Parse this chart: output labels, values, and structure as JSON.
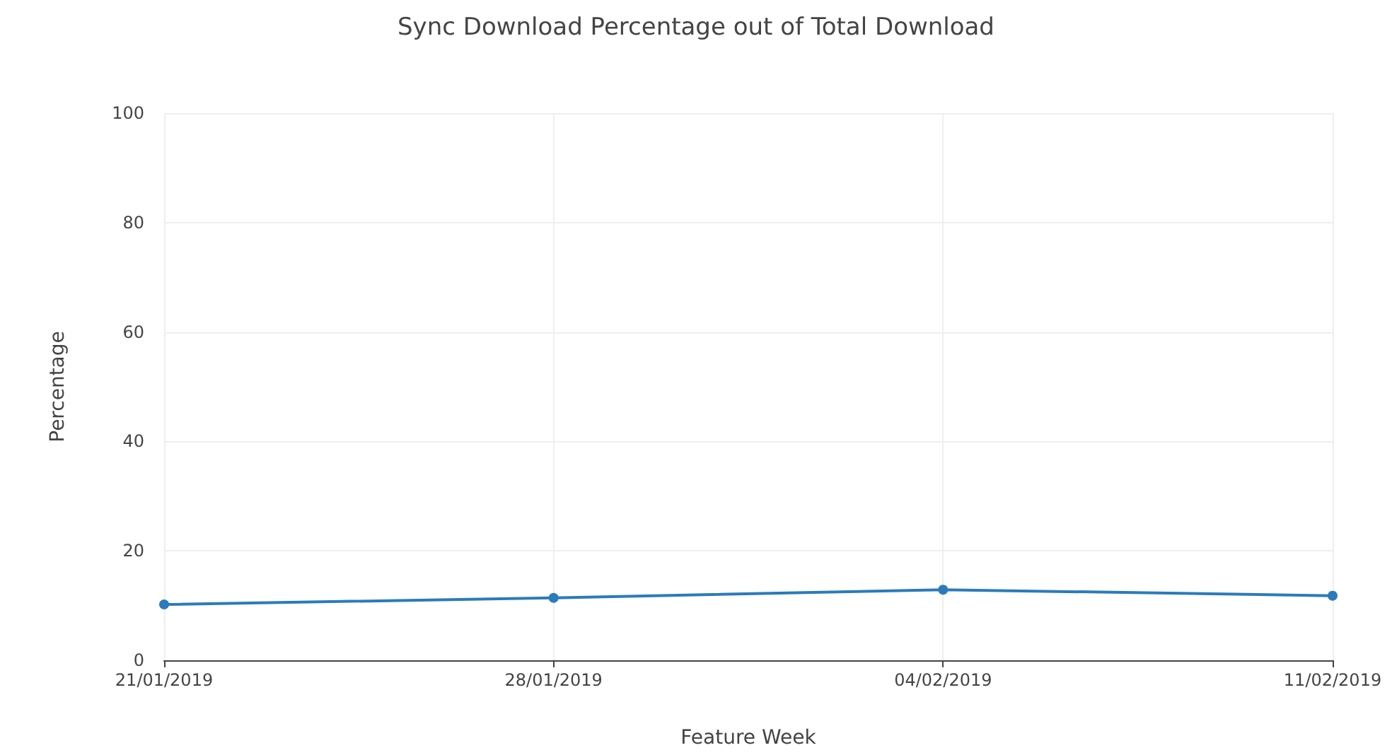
{
  "chart_data": {
    "type": "line",
    "title": "Sync Download Percentage out of Total Download",
    "xlabel": "Feature Week",
    "ylabel": "Percentage",
    "categories": [
      "21/01/2019",
      "28/01/2019",
      "04/02/2019",
      "11/02/2019"
    ],
    "series": [
      {
        "color": "#2b7bba",
        "values": [
          10.2,
          11.4,
          12.9,
          11.8
        ]
      }
    ],
    "ylim": [
      0,
      100
    ],
    "yticks": [
      0,
      20,
      40,
      60,
      80,
      100
    ],
    "grid": true,
    "marker": "circle",
    "line_style": "solid"
  }
}
